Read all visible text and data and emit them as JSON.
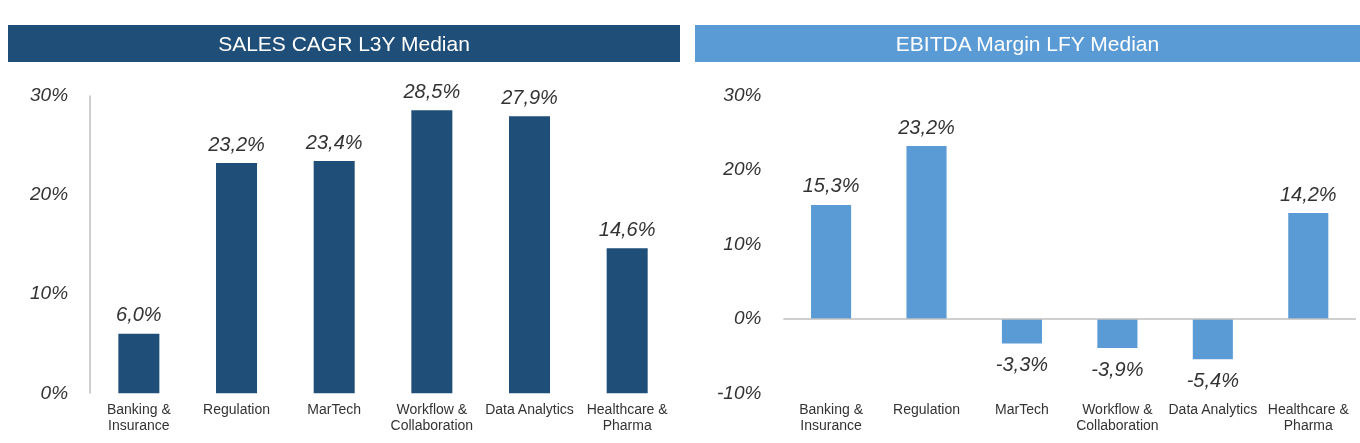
{
  "chart_data": [
    {
      "type": "bar",
      "title": "SALES CAGR L3Y Median",
      "categories": [
        "Banking & Insurance",
        "Regulation",
        "MarTech",
        "Workflow & Collaboration",
        "Data Analytics",
        "Healthcare & Pharma"
      ],
      "values": [
        6.0,
        23.2,
        23.4,
        28.5,
        27.9,
        14.6
      ],
      "value_labels": [
        "6,0%",
        "23,2%",
        "23,4%",
        "28,5%",
        "27,9%",
        "14,6%"
      ],
      "color": "#1f4e79",
      "ylim": [
        0,
        30
      ],
      "yticks": [
        {
          "value": 0,
          "label": "0%"
        },
        {
          "value": 10,
          "label": "10%"
        },
        {
          "value": 20,
          "label": "20%"
        },
        {
          "value": 30,
          "label": "30%"
        }
      ],
      "grid": false,
      "legend": false
    },
    {
      "type": "bar",
      "title": "EBITDA Margin LFY Median",
      "categories": [
        "Banking & Insurance",
        "Regulation",
        "MarTech",
        "Workflow & Collaboration",
        "Data Analytics",
        "Healthcare & Pharma"
      ],
      "values": [
        15.3,
        23.2,
        -3.3,
        -3.9,
        -5.4,
        14.2
      ],
      "value_labels": [
        "15,3%",
        "23,2%",
        "-3,3%",
        "-3,9%",
        "-5,4%",
        "14,2%"
      ],
      "color": "#5b9bd5",
      "ylim": [
        -10,
        30
      ],
      "yticks": [
        {
          "value": -10,
          "label": "-10%"
        },
        {
          "value": 0,
          "label": "0%"
        },
        {
          "value": 10,
          "label": "10%"
        },
        {
          "value": 20,
          "label": "20%"
        },
        {
          "value": 30,
          "label": "30%"
        }
      ],
      "ref_lines": [
        {
          "axis": "y",
          "value": 0,
          "color": "#bfbfbf"
        }
      ],
      "grid": false,
      "legend": false
    }
  ]
}
